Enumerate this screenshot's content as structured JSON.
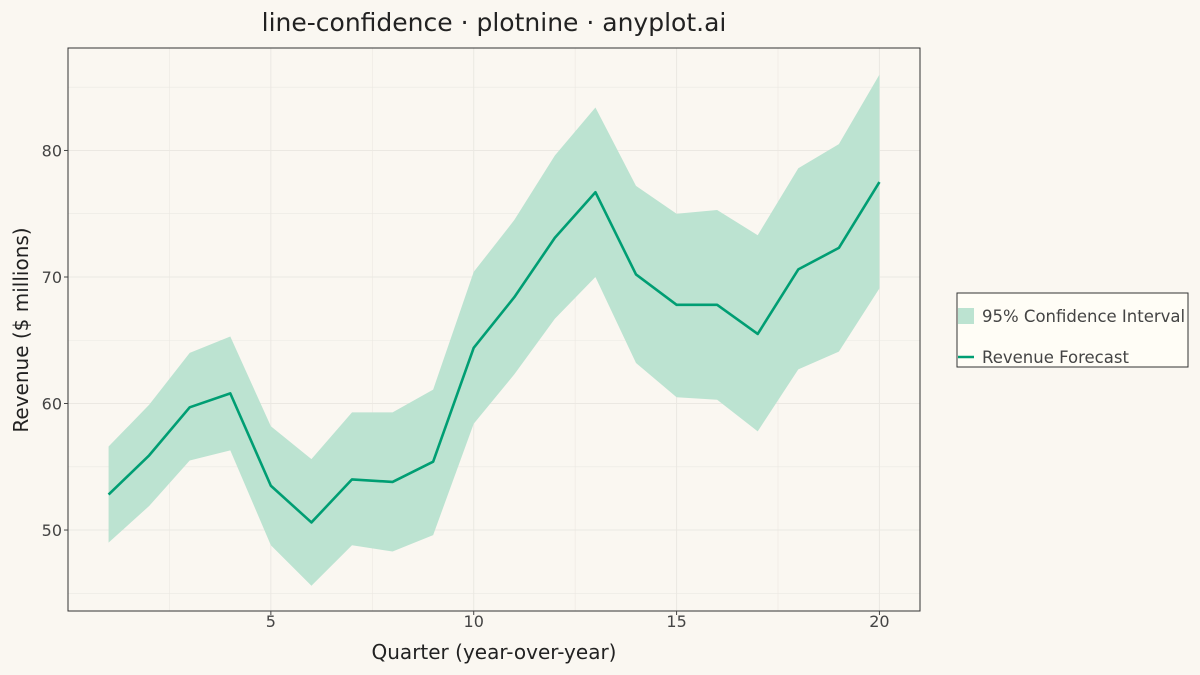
{
  "chart_data": {
    "type": "line",
    "title": "line-confidence · plotnine · anyplot.ai",
    "xlabel": "Quarter (year-over-year)",
    "ylabel": "Revenue ($ millions)",
    "xlim": [
      0,
      21
    ],
    "ylim": [
      43.6,
      88.1
    ],
    "x_ticks": [
      5,
      10,
      15,
      20
    ],
    "y_ticks": [
      50,
      60,
      70,
      80
    ],
    "grid": true,
    "legend_position": "right",
    "x": [
      1,
      2,
      3,
      4,
      5,
      6,
      7,
      8,
      9,
      10,
      11,
      12,
      13,
      14,
      15,
      16,
      17,
      18,
      19,
      20
    ],
    "series": [
      {
        "name": "Revenue Forecast",
        "values": [
          52.8,
          55.9,
          59.7,
          60.8,
          53.5,
          50.6,
          54.0,
          53.8,
          55.4,
          64.4,
          68.4,
          73.1,
          76.7,
          70.2,
          67.8,
          67.8,
          65.5,
          70.6,
          72.3,
          77.5
        ],
        "color": "#009E73"
      }
    ],
    "confidence_band": {
      "name": "95% Confidence Interval",
      "lower": [
        49.0,
        51.9,
        55.5,
        56.3,
        48.8,
        45.6,
        48.8,
        48.3,
        49.6,
        58.4,
        62.3,
        66.7,
        70.0,
        63.2,
        60.5,
        60.3,
        57.8,
        62.7,
        64.1,
        69.1
      ],
      "upper": [
        56.6,
        59.9,
        64.0,
        65.3,
        58.2,
        55.6,
        59.3,
        59.3,
        61.1,
        70.4,
        74.5,
        79.6,
        83.4,
        77.2,
        75.0,
        75.3,
        73.3,
        78.6,
        80.5,
        86.0
      ],
      "color": "#009E73",
      "opacity": 0.25
    },
    "legend": [
      {
        "label": "95% Confidence Interval",
        "kind": "fill"
      },
      {
        "label": "Revenue Forecast",
        "kind": "line"
      }
    ]
  },
  "colors": {
    "background": "#FAF7F1",
    "panel_background": "#FAF7F1",
    "legend_background": "#FFFDF6",
    "grid": "#EBE8E2",
    "accent": "#009E73",
    "band": "#BCE3D1"
  }
}
